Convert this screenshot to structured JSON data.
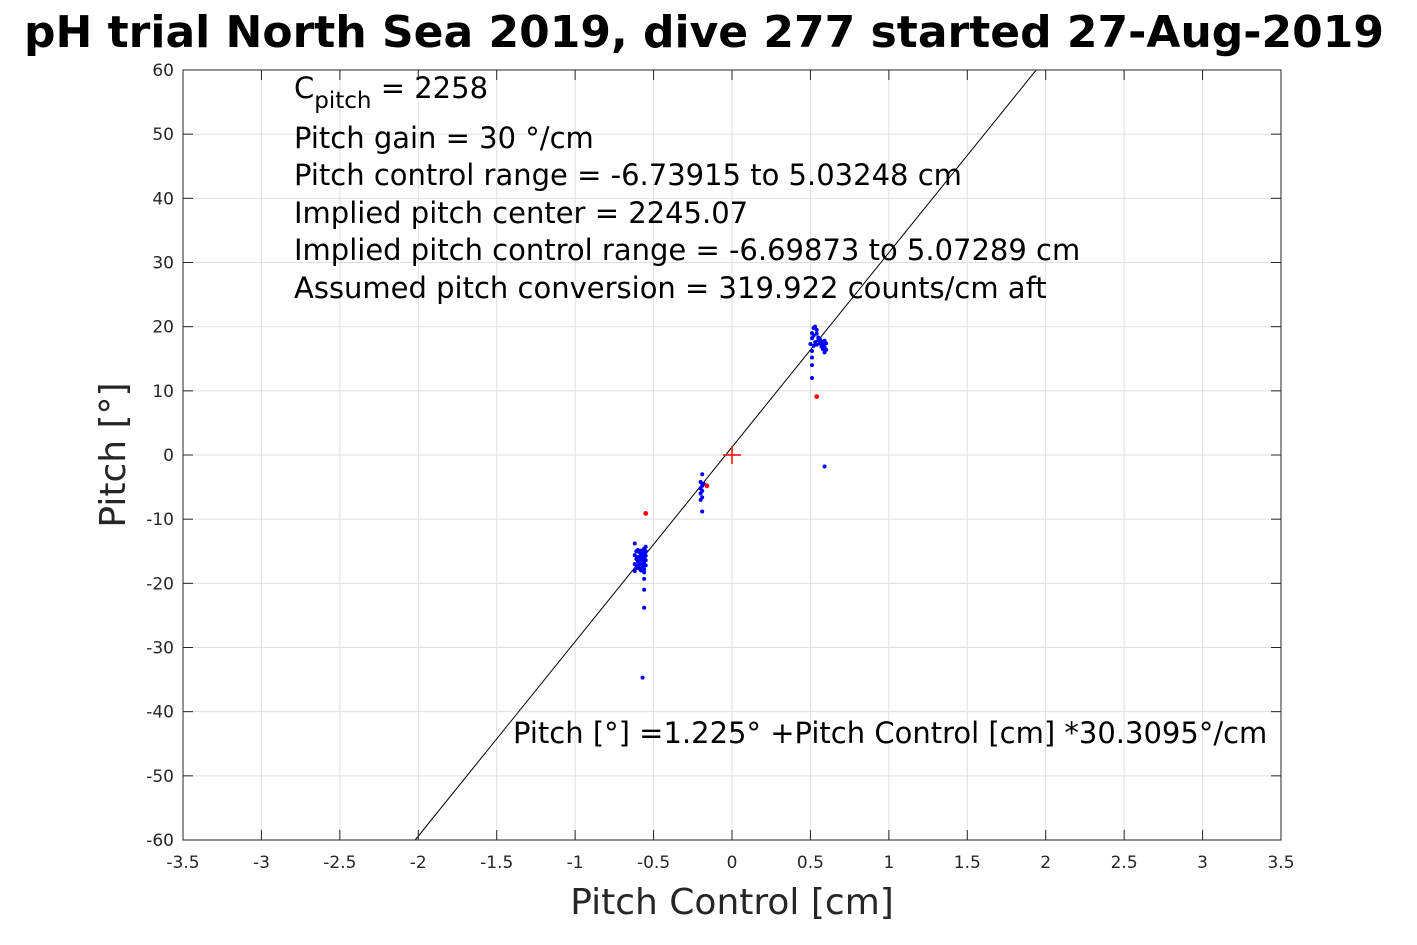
{
  "chart_data": {
    "type": "scatter",
    "title": "pH trial North Sea 2019, dive 277 started 27-Aug-2019",
    "xlabel": "Pitch Control [cm]",
    "ylabel": "Pitch [°]",
    "xlim": [
      -3.5,
      3.5
    ],
    "ylim": [
      -60,
      60
    ],
    "xticks": [
      -3.5,
      -3,
      -2.5,
      -2,
      -1.5,
      -1,
      -0.5,
      0,
      0.5,
      1,
      1.5,
      2,
      2.5,
      3,
      3.5
    ],
    "xtick_labels": [
      "-3.5",
      "-3",
      "-2.5",
      "-2",
      "-1.5",
      "-1",
      "-0.5",
      "0",
      "0.5",
      "1",
      "1.5",
      "2",
      "2.5",
      "3",
      "3.5"
    ],
    "yticks": [
      -60,
      -50,
      -40,
      -30,
      -20,
      -10,
      0,
      10,
      20,
      30,
      40,
      50,
      60
    ],
    "ytick_labels": [
      "-60",
      "-50",
      "-40",
      "-30",
      "-20",
      "-10",
      "0",
      "10",
      "20",
      "30",
      "40",
      "50",
      "60"
    ],
    "grid": true,
    "colors": {
      "good": "#0000ff",
      "bad": "#ff0000",
      "fit": "#000000",
      "center": "#ff0000"
    },
    "fit_line": {
      "intercept": 1.225,
      "slope": 30.3095
    },
    "center_marker": {
      "x": 0,
      "y": 0
    },
    "annotations": {
      "c_pitch_main": "C",
      "c_pitch_sub": "pitch",
      "c_pitch_rest": " = 2258",
      "lines": [
        "Pitch gain = 30 °/cm",
        "Pitch control range = -6.73915 to 5.03248 cm",
        "Implied pitch center = 2245.07",
        "Implied pitch control range = -6.69873 to 5.07289 cm",
        "Assumed pitch conversion = 319.922 counts/cm aft"
      ],
      "equation": "Pitch [°] =1.225° +Pitch Control [cm] *30.3095°/cm"
    },
    "series": [
      {
        "color": "blue",
        "points": [
          [
            -0.62,
            -13.8
          ],
          [
            -0.61,
            -15.0
          ],
          [
            -0.62,
            -15.6
          ],
          [
            -0.61,
            -16.2
          ],
          [
            -0.62,
            -17.0
          ],
          [
            -0.61,
            -17.6
          ],
          [
            -0.62,
            -18.1
          ],
          [
            -0.6,
            -14.8
          ],
          [
            -0.6,
            -15.9
          ],
          [
            -0.6,
            -16.6
          ],
          [
            -0.6,
            -17.3
          ],
          [
            -0.59,
            -15.2
          ],
          [
            -0.59,
            -16.0
          ],
          [
            -0.59,
            -16.8
          ],
          [
            -0.59,
            -17.7
          ],
          [
            -0.58,
            -14.9
          ],
          [
            -0.58,
            -15.5
          ],
          [
            -0.58,
            -16.3
          ],
          [
            -0.58,
            -17.1
          ],
          [
            -0.58,
            -18.0
          ],
          [
            -0.57,
            -15.0
          ],
          [
            -0.57,
            -15.8
          ],
          [
            -0.57,
            -16.5
          ],
          [
            -0.57,
            -17.4
          ],
          [
            -0.56,
            -14.6
          ],
          [
            -0.56,
            -15.3
          ],
          [
            -0.56,
            -16.1
          ],
          [
            -0.56,
            -16.9
          ],
          [
            -0.56,
            -17.8
          ],
          [
            -0.56,
            -18.3
          ],
          [
            -0.55,
            -14.3
          ],
          [
            -0.55,
            -15.0
          ],
          [
            -0.55,
            -15.7
          ],
          [
            -0.55,
            -16.4
          ],
          [
            -0.55,
            -17.2
          ],
          [
            -0.56,
            -19.3
          ],
          [
            -0.56,
            -21.0
          ],
          [
            -0.56,
            -23.8
          ],
          [
            -0.57,
            -34.7
          ],
          [
            -0.19,
            -3.0
          ],
          [
            -0.2,
            -4.2
          ],
          [
            -0.19,
            -4.8
          ],
          [
            -0.2,
            -5.2
          ],
          [
            -0.19,
            -5.6
          ],
          [
            -0.2,
            -6.0
          ],
          [
            -0.19,
            -6.6
          ],
          [
            -0.2,
            -7.0
          ],
          [
            -0.19,
            -8.8
          ],
          [
            -0.18,
            -4.5
          ],
          [
            0.5,
            17.3
          ],
          [
            0.51,
            18.2
          ],
          [
            0.51,
            19.0
          ],
          [
            0.52,
            19.8
          ],
          [
            0.52,
            17.0
          ],
          [
            0.52,
            18.6
          ],
          [
            0.53,
            20.0
          ],
          [
            0.53,
            17.6
          ],
          [
            0.54,
            18.9
          ],
          [
            0.54,
            19.5
          ],
          [
            0.54,
            17.2
          ],
          [
            0.55,
            18.3
          ],
          [
            0.55,
            17.9
          ],
          [
            0.56,
            17.4
          ],
          [
            0.56,
            18.1
          ],
          [
            0.57,
            16.9
          ],
          [
            0.57,
            17.7
          ],
          [
            0.58,
            17.2
          ],
          [
            0.58,
            16.5
          ],
          [
            0.59,
            17.8
          ],
          [
            0.59,
            16.8
          ],
          [
            0.59,
            16.0
          ],
          [
            0.6,
            17.4
          ],
          [
            0.6,
            16.4
          ],
          [
            0.51,
            16.2
          ],
          [
            0.51,
            15.2
          ],
          [
            0.51,
            14.0
          ],
          [
            0.51,
            12.0
          ],
          [
            0.59,
            -1.8
          ]
        ]
      },
      {
        "color": "red",
        "points": [
          [
            -0.55,
            -9.1
          ],
          [
            -0.16,
            -4.8
          ],
          [
            0.54,
            9.1
          ]
        ]
      }
    ]
  }
}
